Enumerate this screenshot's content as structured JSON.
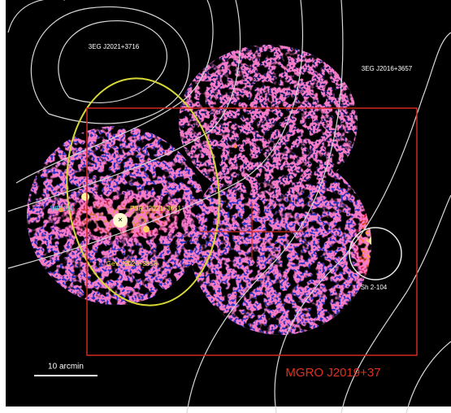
{
  "labels": {
    "source_north": "3EG J2021+3716",
    "source_east": "3EG J2016+3657",
    "source_mgro": "MGRO J2019+37",
    "source_hii": "Sh 2-104",
    "source_gev": "GeV J2020+3658",
    "source_wr": "WR 141",
    "source_psr": "PSR J2021+3651",
    "scale_bar": "10 arcmin"
  }
}
